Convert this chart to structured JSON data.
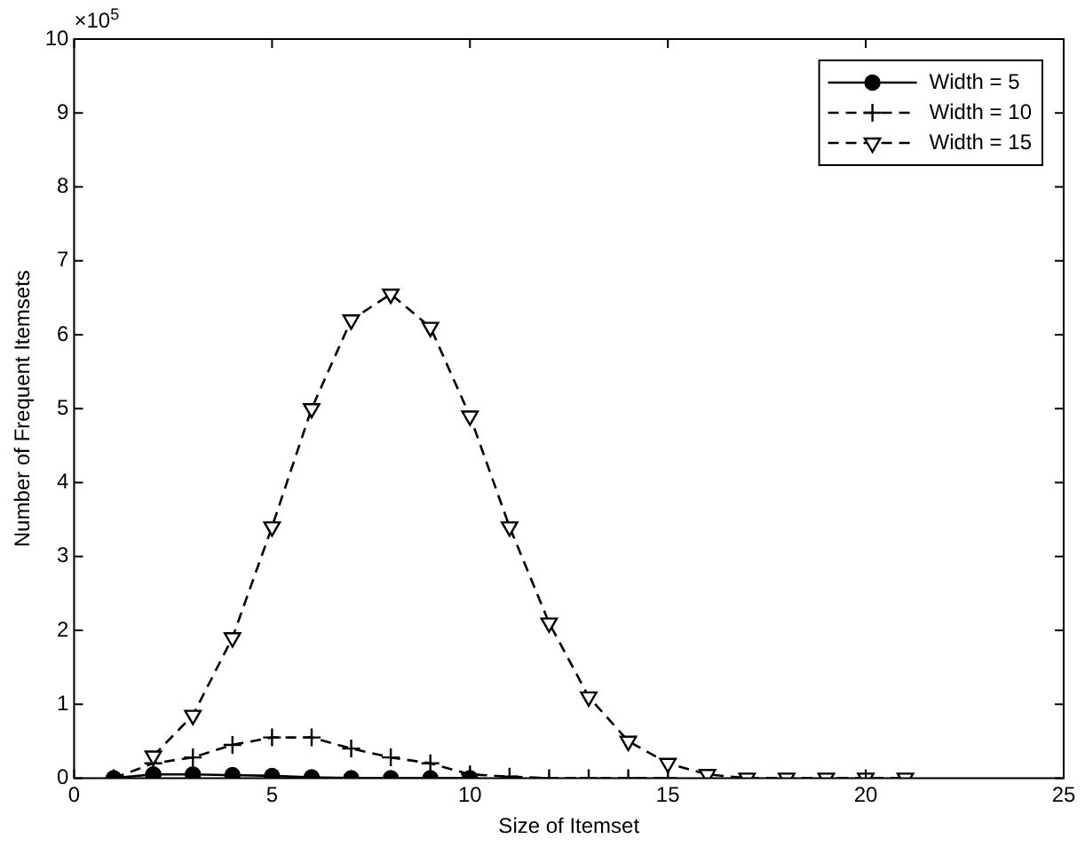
{
  "chart_data": {
    "type": "line",
    "xlabel": "Size of Itemset",
    "ylabel": "Number of Frequent Itemsets",
    "annotations": [
      "×10$^{5}$"
    ],
    "xlim": [
      0,
      25
    ],
    "xticks": [
      0,
      5,
      10,
      15,
      20,
      25
    ],
    "ylim": [
      0,
      10
    ],
    "yticks": [
      0,
      1,
      2,
      3,
      4,
      5,
      6,
      7,
      8,
      9,
      10
    ],
    "grid": false,
    "legend": "top right",
    "series": [
      {
        "name": "Width = 5",
        "color": "#000000",
        "marker": "circle",
        "line_style": "solid",
        "x": [
          1,
          2,
          3,
          4,
          5,
          6,
          7,
          8,
          9,
          10
        ],
        "values": [
          0,
          0.05,
          0.05,
          0.04,
          0.03,
          0.01,
          0,
          0,
          0,
          0
        ]
      },
      {
        "name": "Width = 10",
        "color": "#000000",
        "marker": "cross",
        "line_style": "dashed",
        "x": [
          1,
          2,
          3,
          4,
          5,
          6,
          7,
          8,
          9,
          10,
          11,
          12,
          13,
          14,
          15
        ],
        "values": [
          0,
          0.2,
          0.28,
          0.45,
          0.55,
          0.55,
          0.4,
          0.28,
          0.2,
          0.05,
          0.02,
          0,
          0,
          0,
          0
        ]
      },
      {
        "name": "Width = 15",
        "color": "#000000",
        "marker": "triangle",
        "line_style": "dashed",
        "x": [
          2,
          3,
          4,
          5,
          6,
          7,
          8,
          9,
          10,
          11,
          12,
          13,
          14,
          15,
          16,
          17,
          18,
          19,
          20,
          21
        ],
        "values": [
          0.3,
          0.85,
          1.9,
          3.4,
          5.0,
          6.2,
          6.55,
          6.1,
          4.9,
          3.4,
          2.1,
          1.1,
          0.5,
          0.2,
          0.05,
          0,
          0,
          0,
          0,
          0
        ]
      }
    ]
  }
}
